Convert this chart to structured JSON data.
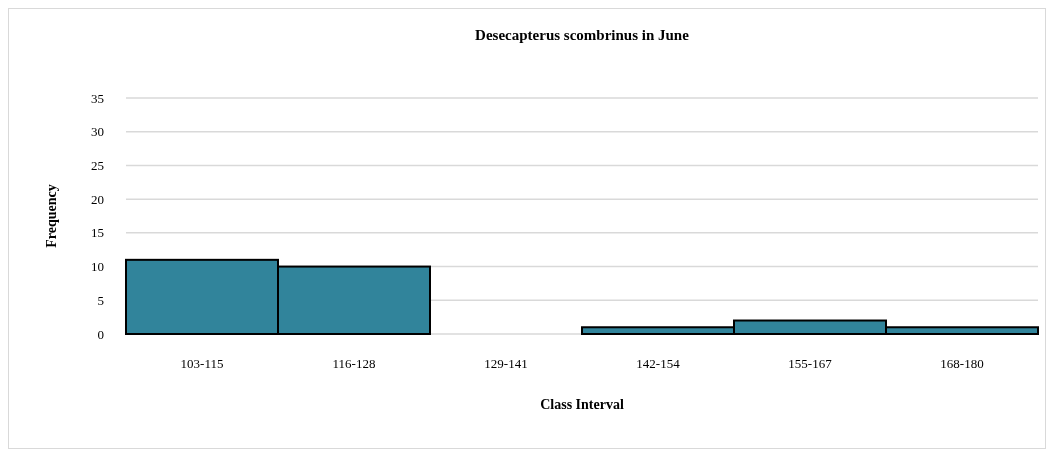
{
  "chart_data": {
    "type": "bar",
    "title": "Desecapterus scombrinus in June",
    "xlabel": "Class Interval",
    "ylabel": "Frequency",
    "categories": [
      "103-115",
      "116-128",
      "129-141",
      "142-154",
      "155-167",
      "168-180"
    ],
    "values": [
      11,
      10,
      0,
      1,
      2,
      1
    ],
    "color": "#31849b",
    "ylim": [
      0,
      35
    ],
    "yticks": [
      0,
      5,
      10,
      15,
      20,
      25,
      30,
      35
    ],
    "grid": "y"
  }
}
